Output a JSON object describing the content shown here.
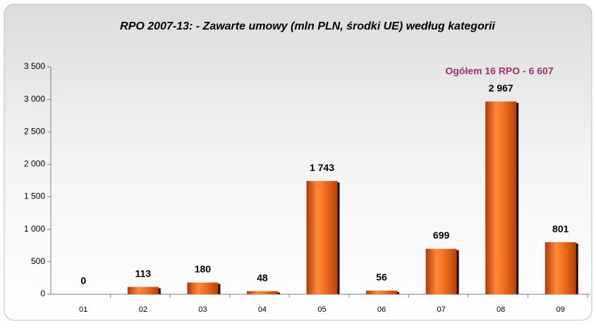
{
  "chart_data": {
    "type": "bar",
    "title": "RPO 2007-13:  - Zawarte umowy (mln PLN, środki UE) według kategorii",
    "annotation": "Ogółem 16 RPO - 6 607",
    "categories": [
      "01",
      "02",
      "03",
      "04",
      "05",
      "06",
      "07",
      "08",
      "09"
    ],
    "values": [
      0,
      113,
      180,
      48,
      1743,
      56,
      699,
      2967,
      801
    ],
    "value_labels": [
      "0",
      "113",
      "180",
      "48",
      "1 743",
      "56",
      "699",
      "2 967",
      "801"
    ],
    "color": "#e8641c",
    "ylim": [
      0,
      3500
    ],
    "yticks": [
      0,
      500,
      {
        "value": 1000,
        "label": "1 000"
      },
      {
        "value": 1500,
        "label": "1 500"
      },
      {
        "value": 2000,
        "label": "2 000"
      },
      {
        "value": 2500,
        "label": "2 500"
      },
      {
        "value": 3000,
        "label": "3 000"
      },
      {
        "value": 3500,
        "label": "3 500"
      }
    ],
    "grid": false
  }
}
